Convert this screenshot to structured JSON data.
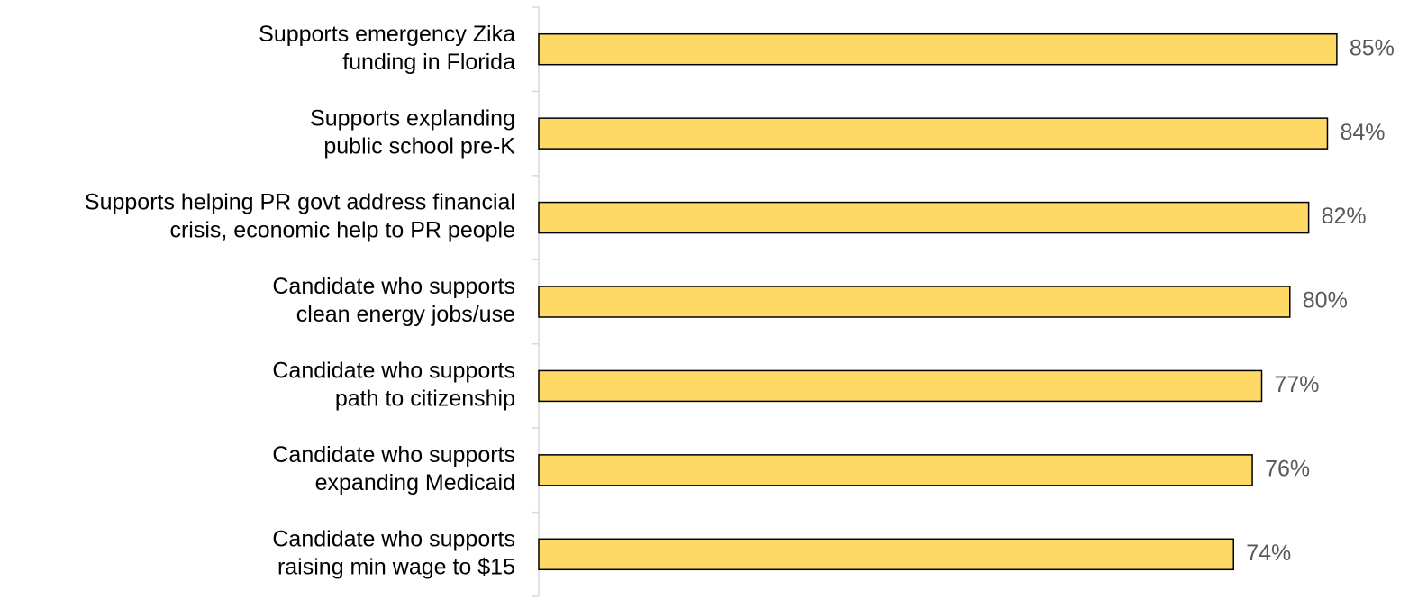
{
  "chart_data": {
    "type": "bar",
    "orientation": "horizontal",
    "categories": [
      [
        "Supports emergency Zika",
        "funding in Florida"
      ],
      [
        "Supports explanding",
        "public school pre-K"
      ],
      [
        "Supports helping PR govt address financial",
        "crisis, economic help to PR people"
      ],
      [
        "Candidate who supports",
        "clean energy jobs/use"
      ],
      [
        "Candidate who supports",
        "path to citizenship"
      ],
      [
        "Candidate who supports",
        "expanding Medicaid"
      ],
      [
        "Candidate who supports",
        "raising min wage to $15"
      ]
    ],
    "values": [
      85,
      84,
      82,
      80,
      77,
      76,
      74
    ],
    "value_labels": [
      "85%",
      "84%",
      "82%",
      "80%",
      "77%",
      "76%",
      "74%"
    ],
    "color": "#FFD966",
    "xlim": [
      0,
      90
    ]
  }
}
